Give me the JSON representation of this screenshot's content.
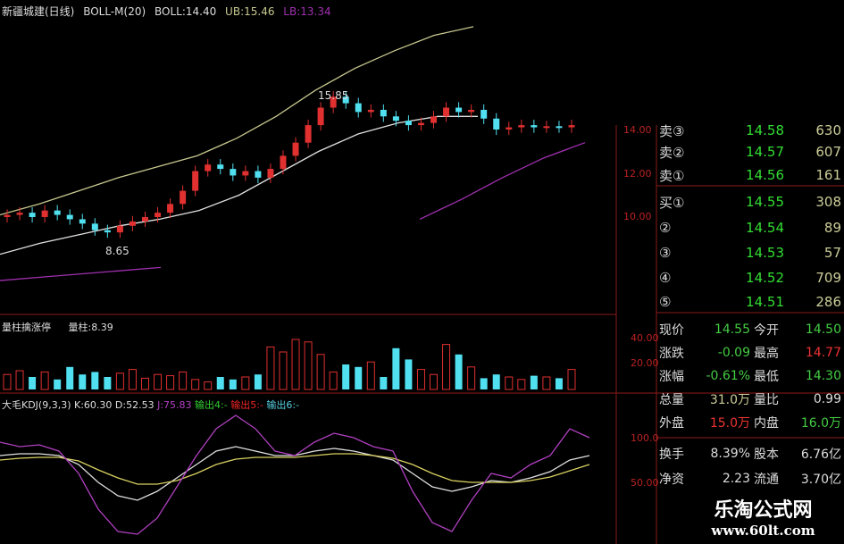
{
  "header": {
    "title": "新疆城建(日线)",
    "indicator": "BOLL-M(20)",
    "boll": "BOLL:14.40",
    "ub": "UB:15.46",
    "lb": "LB:13.34"
  },
  "annotations": {
    "high": "15.85",
    "low": "8.65"
  },
  "price_axis": [
    "14.00",
    "12.00",
    "10.00"
  ],
  "volume_panel": {
    "title": "量柱擒涨停",
    "value": "量柱:8.39",
    "axis": [
      "40.00",
      "20.00"
    ]
  },
  "kdj_panel": {
    "title": "大毛KDJ(9,3,3)",
    "k": "K:60.30",
    "d": "D:52.53",
    "j": "J:75.83",
    "out4": "输出4:-",
    "out5": "输出5:-",
    "out6": "输出6:-",
    "axis": [
      "100.0",
      "50.00"
    ]
  },
  "order_book": {
    "sell": [
      {
        "label": "卖③",
        "price": "14.58",
        "vol": "630"
      },
      {
        "label": "卖②",
        "price": "14.57",
        "vol": "607"
      },
      {
        "label": "卖①",
        "price": "14.56",
        "vol": "161"
      }
    ],
    "buy": [
      {
        "label": "买①",
        "price": "14.55",
        "vol": "308"
      },
      {
        "label": "②",
        "price": "14.54",
        "vol": "89"
      },
      {
        "label": "③",
        "price": "14.53",
        "vol": "57"
      },
      {
        "label": "④",
        "price": "14.52",
        "vol": "709"
      },
      {
        "label": "⑤",
        "price": "14.51",
        "vol": "286"
      }
    ]
  },
  "stats": [
    {
      "l1": "现价",
      "v1": "14.55",
      "c1": "#4c4",
      "l2": "今开",
      "v2": "14.50",
      "c2": "#4c4"
    },
    {
      "l1": "涨跌",
      "v1": "-0.09",
      "c1": "#4c4",
      "l2": "最高",
      "v2": "14.77",
      "c2": "#e33"
    },
    {
      "l1": "涨幅",
      "v1": "-0.61%",
      "c1": "#4c4",
      "l2": "最低",
      "v2": "14.30",
      "c2": "#4c4"
    },
    {
      "l1": "总量",
      "v1": "31.0万",
      "c1": "#cc9",
      "l2": "量比",
      "v2": "0.99",
      "c2": "#ddd"
    },
    {
      "l1": "外盘",
      "v1": "15.0万",
      "c1": "#e33",
      "l2": "内盘",
      "v2": "16.0万",
      "c2": "#4c4"
    },
    {
      "l1": "换手",
      "v1": "8.39%",
      "c1": "#ddd",
      "l2": "股本",
      "v2": "6.76亿",
      "c2": "#ddd"
    },
    {
      "l1": "净资",
      "v1": "2.23",
      "c1": "#ddd",
      "l2": "流通",
      "v2": "3.70亿",
      "c2": "#ddd"
    }
  ],
  "watermark": {
    "name": "乐淘公式网",
    "url": "www.60lt.com"
  },
  "colors": {
    "up": "#e03030",
    "down": "#50e0f0",
    "ub": "#c8c890",
    "mid": "#e0e0e0",
    "lb": "#a030b0",
    "k": "#e0e0e0",
    "d": "#d8d060",
    "j": "#b040c0",
    "grid": "#8b1a1a"
  },
  "chart_data": {
    "type": "candlestick",
    "close": [
      10.1,
      10.2,
      10.0,
      10.3,
      10.1,
      9.9,
      9.7,
      9.4,
      9.3,
      9.6,
      9.8,
      10.0,
      10.2,
      10.6,
      11.2,
      12.1,
      12.4,
      12.2,
      11.9,
      12.1,
      11.8,
      12.2,
      12.8,
      13.4,
      14.2,
      15.0,
      15.5,
      15.2,
      14.8,
      14.9,
      14.6,
      14.4,
      14.2,
      14.3,
      14.6,
      15.0,
      14.8,
      14.9,
      14.5,
      14.0,
      14.1,
      14.2,
      14.1,
      14.15,
      14.1,
      14.2
    ],
    "ub": [
      10.1,
      10.6,
      11.2,
      11.8,
      12.3,
      12.8,
      13.6,
      14.6,
      15.8,
      16.8,
      17.6,
      18.3,
      18.7
    ],
    "mid": [
      8.3,
      8.8,
      9.2,
      9.6,
      9.9,
      10.3,
      11.0,
      12.0,
      13.0,
      13.8,
      14.3,
      14.6,
      14.6
    ],
    "lb": [
      7.1,
      7.3,
      7.5,
      7.7
    ],
    "lb2": [
      9.9,
      10.8,
      11.8,
      12.7,
      13.4
    ],
    "volume": [
      12,
      15,
      10,
      14,
      8,
      18,
      12,
      14,
      10,
      13,
      16,
      9,
      12,
      11,
      14,
      8,
      6,
      10,
      8,
      10,
      12,
      34,
      30,
      40,
      38,
      28,
      14,
      20,
      18,
      22,
      10,
      33,
      24,
      16,
      12,
      36,
      28,
      18,
      9,
      12,
      10,
      8,
      11,
      10,
      9,
      16
    ],
    "k": [
      80,
      82,
      82,
      80,
      70,
      50,
      35,
      30,
      40,
      55,
      70,
      85,
      90,
      85,
      80,
      80,
      85,
      88,
      85,
      80,
      75,
      60,
      45,
      40,
      45,
      52,
      50,
      55,
      62,
      75,
      80
    ],
    "d": [
      75,
      77,
      78,
      78,
      74,
      64,
      55,
      48,
      48,
      52,
      60,
      70,
      76,
      78,
      78,
      78,
      80,
      82,
      82,
      80,
      77,
      70,
      60,
      52,
      50,
      50,
      50,
      52,
      56,
      63,
      70
    ],
    "j": [
      95,
      90,
      92,
      85,
      60,
      20,
      -5,
      -8,
      10,
      45,
      80,
      110,
      125,
      110,
      85,
      80,
      95,
      105,
      100,
      90,
      85,
      40,
      5,
      -5,
      30,
      60,
      55,
      70,
      80,
      110,
      100
    ]
  }
}
